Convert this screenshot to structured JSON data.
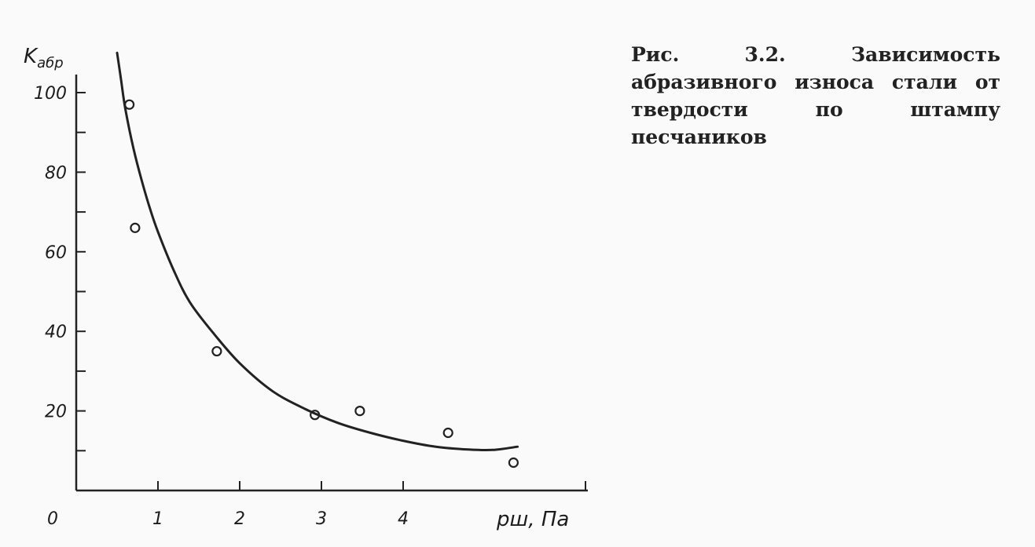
{
  "caption": "Рис. 3.2. Зависимость абразивного износа стали от твердости по штампу песчаников",
  "chart_data": {
    "type": "scatter",
    "title": "",
    "ylabel": "K",
    "ylabel_sub": "абр",
    "xlabel": "pш, Па",
    "origin_label": "0",
    "xlim": [
      0,
      5.3
    ],
    "ylim": [
      0,
      100
    ],
    "x_ticks": [
      1,
      2,
      3,
      4
    ],
    "x_tick_labels": [
      "1",
      "2",
      "3",
      "4"
    ],
    "y_ticks": [
      20,
      40,
      60,
      80,
      100
    ],
    "y_tick_labels": [
      "20",
      "40",
      "60",
      "80",
      "100"
    ],
    "y_minor_ticks": [
      10,
      30,
      50,
      70,
      90
    ],
    "grid": false,
    "points": [
      {
        "x": 0.65,
        "y": 97
      },
      {
        "x": 0.72,
        "y": 66
      },
      {
        "x": 1.72,
        "y": 35
      },
      {
        "x": 2.92,
        "y": 19
      },
      {
        "x": 3.47,
        "y": 20
      },
      {
        "x": 4.55,
        "y": 14.5
      },
      {
        "x": 5.35,
        "y": 7
      }
    ],
    "trend_curve": {
      "x": [
        0.5,
        0.55,
        0.6,
        0.7,
        0.8,
        0.9,
        1.0,
        1.2,
        1.4,
        1.7,
        2.0,
        2.4,
        2.8,
        3.2,
        3.6,
        4.0,
        4.4,
        4.8,
        5.1,
        5.4
      ],
      "y": [
        110,
        103,
        96,
        86,
        78,
        71,
        65,
        55,
        47,
        39,
        32,
        25,
        20.5,
        17,
        14.5,
        12.5,
        11,
        10.3,
        10.2,
        11
      ]
    }
  }
}
